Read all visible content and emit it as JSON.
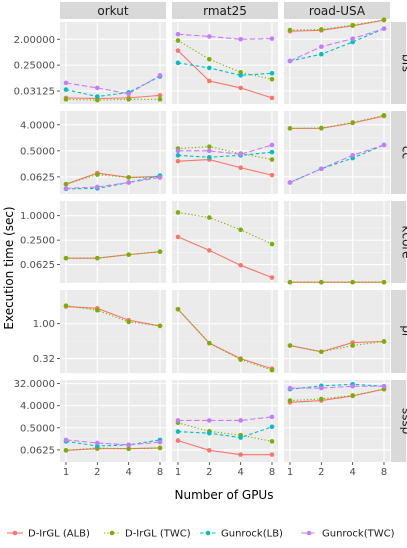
{
  "chart_data": {
    "type": "line",
    "xlabel": "Number of GPUs",
    "ylabel": "Execution time (sec)",
    "x": [
      1,
      2,
      4,
      8
    ],
    "x_tick_labels": [
      "1",
      "2",
      "4",
      "8"
    ],
    "x_scale": "log2",
    "y_scale": "log",
    "grid": true,
    "legend_position": "bottom",
    "columns": [
      "orkut",
      "rmat25",
      "road-USA"
    ],
    "rows": [
      {
        "name": "bfs",
        "y_ticks": [
          0.03125,
          0.25,
          2.0
        ],
        "y_tick_labels": [
          "0.03125",
          "0.25000",
          "2.00000"
        ],
        "ylim": [
          0.011,
          8.0
        ]
      },
      {
        "name": "cc",
        "y_ticks": [
          0.0625,
          0.5,
          4.0
        ],
        "y_tick_labels": [
          "0.0625",
          "0.5000",
          "4.0000"
        ],
        "ylim": [
          0.016,
          12.0
        ]
      },
      {
        "name": "kcore",
        "y_ticks": [
          0.0625,
          0.25,
          1.0
        ],
        "y_tick_labels": [
          "0.0625",
          "0.2500",
          "1.0000"
        ],
        "ylim": [
          0.022,
          2.3
        ]
      },
      {
        "name": "pr",
        "y_ticks": [
          0.32,
          1.0
        ],
        "y_tick_labels": [
          "0.32",
          "1.00"
        ],
        "ylim": [
          0.2,
          3.0
        ]
      },
      {
        "name": "sssp",
        "y_ticks": [
          0.0625,
          0.5,
          4.0,
          32.0
        ],
        "y_tick_labels": [
          "0.0625",
          "0.5000",
          "4.0000",
          "32.0000"
        ],
        "ylim": [
          0.02,
          45.0
        ]
      }
    ],
    "series_styles": [
      {
        "name": "D-IrGL (ALB)",
        "color": "#F8766D",
        "dash": "solid"
      },
      {
        "name": "D-IrGL (TWC)",
        "color": "#7CAE00",
        "dash": "dotted"
      },
      {
        "name": "Gunrock(LB)",
        "color": "#00BFC4",
        "dash": "dashed"
      },
      {
        "name": "Gunrock(TWC)",
        "color": "#C77CFF",
        "dash": "longdash"
      }
    ],
    "panels": [
      {
        "row": "bfs",
        "column": "orkut",
        "series": [
          {
            "name": "D-IrGL (ALB)",
            "values": [
              0.018,
              0.017,
              0.018,
              0.022
            ]
          },
          {
            "name": "D-IrGL (TWC)",
            "values": [
              0.016,
              0.015,
              0.016,
              0.016
            ]
          },
          {
            "name": "Gunrock(LB)",
            "values": [
              0.035,
              0.02,
              0.028,
              0.1
            ]
          },
          {
            "name": "Gunrock(TWC)",
            "values": [
              0.06,
              0.04,
              0.025,
              0.11
            ]
          }
        ]
      },
      {
        "row": "bfs",
        "column": "rmat25",
        "series": [
          {
            "name": "D-IrGL (ALB)",
            "values": [
              0.8,
              0.07,
              0.04,
              0.018
            ]
          },
          {
            "name": "D-IrGL (TWC)",
            "values": [
              1.8,
              0.4,
              0.14,
              0.08
            ]
          },
          {
            "name": "Gunrock(LB)",
            "values": [
              0.3,
              0.2,
              0.11,
              0.13
            ]
          },
          {
            "name": "Gunrock(TWC)",
            "values": [
              3.0,
              2.5,
              2.0,
              2.1
            ]
          }
        ]
      },
      {
        "row": "bfs",
        "column": "road-USA",
        "series": [
          {
            "name": "D-IrGL (ALB)",
            "values": [
              3.8,
              4.1,
              5.9,
              9.2
            ]
          },
          {
            "name": "D-IrGL (TWC)",
            "values": [
              4.2,
              4.4,
              6.2,
              9.6
            ]
          },
          {
            "name": "Gunrock(LB)",
            "values": [
              0.35,
              0.6,
              1.6,
              4.7
            ]
          },
          {
            "name": "Gunrock(TWC)",
            "values": [
              0.35,
              1.1,
              2.1,
              4.7
            ]
          }
        ]
      },
      {
        "row": "cc",
        "column": "orkut",
        "series": [
          {
            "name": "D-IrGL (ALB)",
            "values": [
              0.035,
              0.085,
              0.06,
              0.065
            ]
          },
          {
            "name": "D-IrGL (TWC)",
            "values": [
              0.035,
              0.075,
              0.06,
              0.06
            ]
          },
          {
            "name": "Gunrock(LB)",
            "values": [
              0.024,
              0.025,
              0.04,
              0.07
            ]
          },
          {
            "name": "Gunrock(TWC)",
            "values": [
              0.025,
              0.028,
              0.04,
              0.06
            ]
          }
        ]
      },
      {
        "row": "cc",
        "column": "rmat25",
        "series": [
          {
            "name": "D-IrGL (ALB)",
            "values": [
              0.22,
              0.25,
              0.13,
              0.072
            ]
          },
          {
            "name": "D-IrGL (TWC)",
            "values": [
              0.6,
              0.7,
              0.4,
              0.25
            ]
          },
          {
            "name": "Gunrock(LB)",
            "values": [
              0.35,
              0.3,
              0.35,
              0.45
            ]
          },
          {
            "name": "Gunrock(TWC)",
            "values": [
              0.5,
              0.5,
              0.38,
              0.8
            ]
          }
        ]
      },
      {
        "row": "cc",
        "column": "road-USA",
        "series": [
          {
            "name": "D-IrGL (ALB)",
            "values": [
              3.0,
              3.0,
              4.6,
              8.0
            ]
          },
          {
            "name": "D-IrGL (TWC)",
            "values": [
              3.0,
              3.1,
              4.8,
              8.5
            ]
          },
          {
            "name": "Gunrock(LB)",
            "values": [
              0.04,
              0.12,
              0.28,
              0.8
            ]
          },
          {
            "name": "Gunrock(TWC)",
            "values": [
              0.04,
              0.12,
              0.35,
              0.8
            ]
          }
        ]
      },
      {
        "row": "kcore",
        "column": "orkut",
        "series": [
          {
            "name": "D-IrGL (ALB)",
            "values": [
              0.09,
              0.09,
              0.11,
              0.13
            ]
          },
          {
            "name": "D-IrGL (TWC)",
            "values": [
              0.09,
              0.09,
              0.11,
              0.13
            ]
          }
        ]
      },
      {
        "row": "kcore",
        "column": "rmat25",
        "series": [
          {
            "name": "D-IrGL (ALB)",
            "values": [
              0.3,
              0.14,
              0.06,
              0.03
            ]
          },
          {
            "name": "D-IrGL (TWC)",
            "values": [
              1.2,
              0.9,
              0.45,
              0.2
            ]
          }
        ]
      },
      {
        "row": "kcore",
        "column": "road-USA",
        "series": [
          {
            "name": "D-IrGL (ALB)",
            "values": [
              0.023,
              0.023,
              0.023,
              0.023
            ]
          },
          {
            "name": "D-IrGL (TWC)",
            "values": [
              0.023,
              0.023,
              0.023,
              0.023
            ]
          }
        ]
      },
      {
        "row": "pr",
        "column": "orkut",
        "series": [
          {
            "name": "D-IrGL (ALB)",
            "values": [
              1.75,
              1.65,
              1.12,
              0.93
            ]
          },
          {
            "name": "D-IrGL (TWC)",
            "values": [
              1.8,
              1.55,
              1.06,
              0.93
            ]
          }
        ]
      },
      {
        "row": "pr",
        "column": "rmat25",
        "series": [
          {
            "name": "D-IrGL (ALB)",
            "values": [
              1.6,
              0.53,
              0.32,
              0.23
            ]
          },
          {
            "name": "D-IrGL (TWC)",
            "values": [
              1.6,
              0.53,
              0.31,
              0.22
            ]
          }
        ]
      },
      {
        "row": "pr",
        "column": "road-USA",
        "series": [
          {
            "name": "D-IrGL (ALB)",
            "values": [
              0.49,
              0.4,
              0.54,
              0.56
            ]
          },
          {
            "name": "D-IrGL (TWC)",
            "values": [
              0.49,
              0.4,
              0.49,
              0.56
            ]
          }
        ]
      },
      {
        "row": "sssp",
        "column": "orkut",
        "series": [
          {
            "name": "D-IrGL (ALB)",
            "values": [
              0.06,
              0.07,
              0.07,
              0.075
            ]
          },
          {
            "name": "D-IrGL (TWC)",
            "values": [
              0.06,
              0.075,
              0.07,
              0.075
            ]
          },
          {
            "name": "Gunrock(LB)",
            "values": [
              0.14,
              0.09,
              0.1,
              0.16
            ]
          },
          {
            "name": "Gunrock(TWC)",
            "values": [
              0.16,
              0.12,
              0.1,
              0.13
            ]
          }
        ]
      },
      {
        "row": "sssp",
        "column": "rmat25",
        "series": [
          {
            "name": "D-IrGL (ALB)",
            "values": [
              0.15,
              0.06,
              0.04,
              0.04
            ]
          },
          {
            "name": "D-IrGL (TWC)",
            "values": [
              0.8,
              0.36,
              0.25,
              0.14
            ]
          },
          {
            "name": "Gunrock(LB)",
            "values": [
              0.35,
              0.3,
              0.2,
              0.55
            ]
          },
          {
            "name": "Gunrock(TWC)",
            "values": [
              1.0,
              1.0,
              1.0,
              1.4
            ]
          }
        ]
      },
      {
        "row": "sssp",
        "column": "road-USA",
        "series": [
          {
            "name": "D-IrGL (ALB)",
            "values": [
              5.5,
              6.5,
              10.0,
              19.0
            ]
          },
          {
            "name": "D-IrGL (TWC)",
            "values": [
              6.5,
              7.5,
              10.5,
              19.0
            ]
          },
          {
            "name": "Gunrock(LB)",
            "values": [
              19.0,
              26.0,
              30.0,
              25.0
            ]
          },
          {
            "name": "Gunrock(TWC)",
            "values": [
              21.0,
              21.0,
              25.0,
              25.0
            ]
          }
        ]
      }
    ]
  }
}
